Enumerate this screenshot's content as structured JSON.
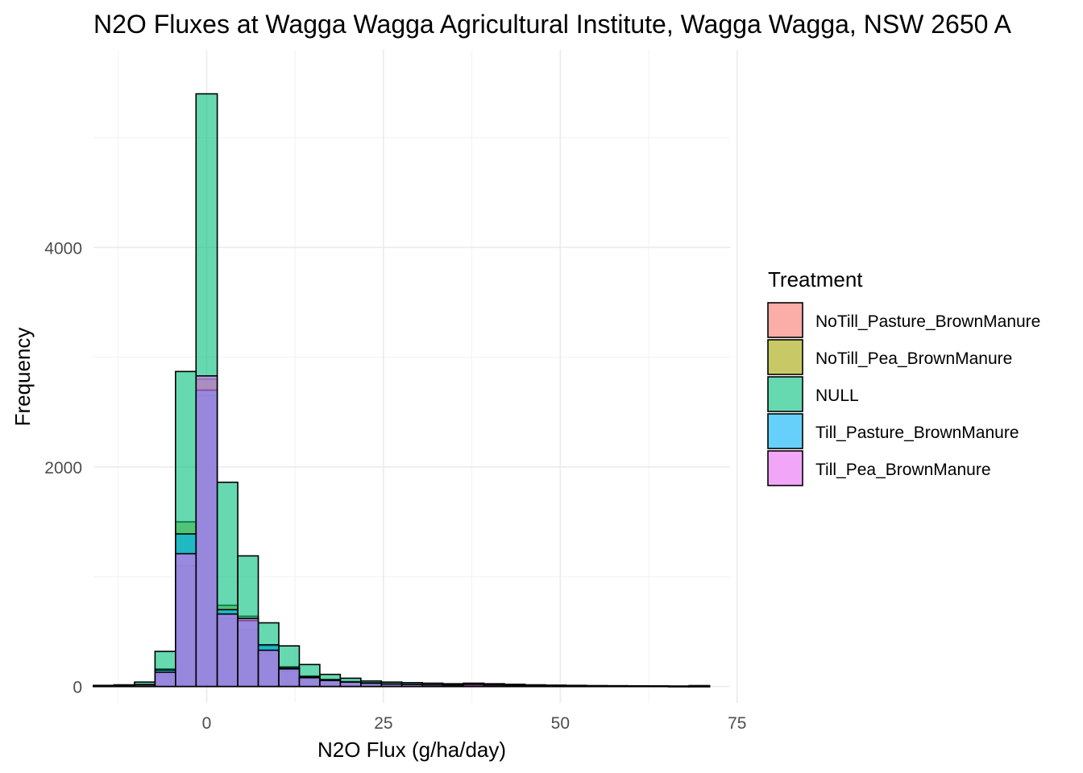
{
  "chart_data": {
    "type": "bar",
    "subtype": "overlaid-histogram",
    "title": "N2O Fluxes at Wagga Wagga Agricultural Institute, Wagga Wagga, NSW 2650 A",
    "xlabel": "N2O Flux (g/ha/day)",
    "ylabel": "Frequency",
    "xlim": [
      -16,
      74
    ],
    "ylim": [
      -150,
      5800
    ],
    "x_ticks": [
      0,
      25,
      50,
      75
    ],
    "y_ticks": [
      0,
      2000,
      4000
    ],
    "grid": true,
    "legend_position": "right",
    "legend_title": "Treatment",
    "bin_width": 2.9,
    "bin_edges": [
      -16.0,
      -13.1,
      -10.2,
      -7.3,
      -4.4,
      -1.5,
      1.5,
      4.4,
      7.3,
      10.2,
      13.1,
      16.0,
      18.9,
      21.8,
      24.7,
      27.6,
      30.5,
      33.4,
      36.3,
      39.2,
      42.1,
      45.0,
      47.9,
      50.8,
      53.7,
      56.6,
      59.5,
      62.4,
      65.3,
      68.2,
      71.1
    ],
    "series": [
      {
        "name": "NoTill_Pasture_BrownManure",
        "color": "#F8766D",
        "values": [
          5,
          5,
          15,
          100,
          1100,
          2650,
          620,
          520,
          300,
          140,
          70,
          50,
          35,
          25,
          18,
          15,
          12,
          10,
          12,
          10,
          8,
          7,
          6,
          5,
          5,
          4,
          4,
          3,
          2,
          2
        ]
      },
      {
        "name": "NoTill_Pea_BrownManure",
        "color": "#A3A500",
        "values": [
          5,
          8,
          20,
          160,
          1500,
          2800,
          740,
          640,
          370,
          180,
          95,
          65,
          45,
          35,
          25,
          20,
          15,
          12,
          15,
          12,
          10,
          8,
          7,
          6,
          5,
          4,
          4,
          3,
          2,
          2
        ]
      },
      {
        "name": "NULL",
        "color": "#00BF7D",
        "values": [
          10,
          15,
          40,
          320,
          2870,
          5400,
          1860,
          1190,
          580,
          370,
          200,
          110,
          75,
          50,
          40,
          35,
          30,
          25,
          30,
          25,
          20,
          15,
          12,
          10,
          8,
          7,
          6,
          5,
          4,
          8
        ]
      },
      {
        "name": "Till_Pasture_BrownManure",
        "color": "#00B0F6",
        "values": [
          5,
          5,
          15,
          150,
          1390,
          2700,
          700,
          600,
          380,
          170,
          90,
          60,
          40,
          30,
          22,
          18,
          14,
          11,
          13,
          11,
          9,
          7,
          6,
          5,
          5,
          4,
          3,
          3,
          2,
          2
        ]
      },
      {
        "name": "Till_Pea_BrownManure",
        "color": "#E76BF3",
        "values": [
          5,
          5,
          15,
          130,
          1210,
          2830,
          660,
          620,
          330,
          160,
          80,
          55,
          40,
          30,
          22,
          20,
          16,
          13,
          20,
          14,
          10,
          8,
          6,
          5,
          5,
          4,
          3,
          3,
          2,
          2
        ]
      }
    ]
  }
}
